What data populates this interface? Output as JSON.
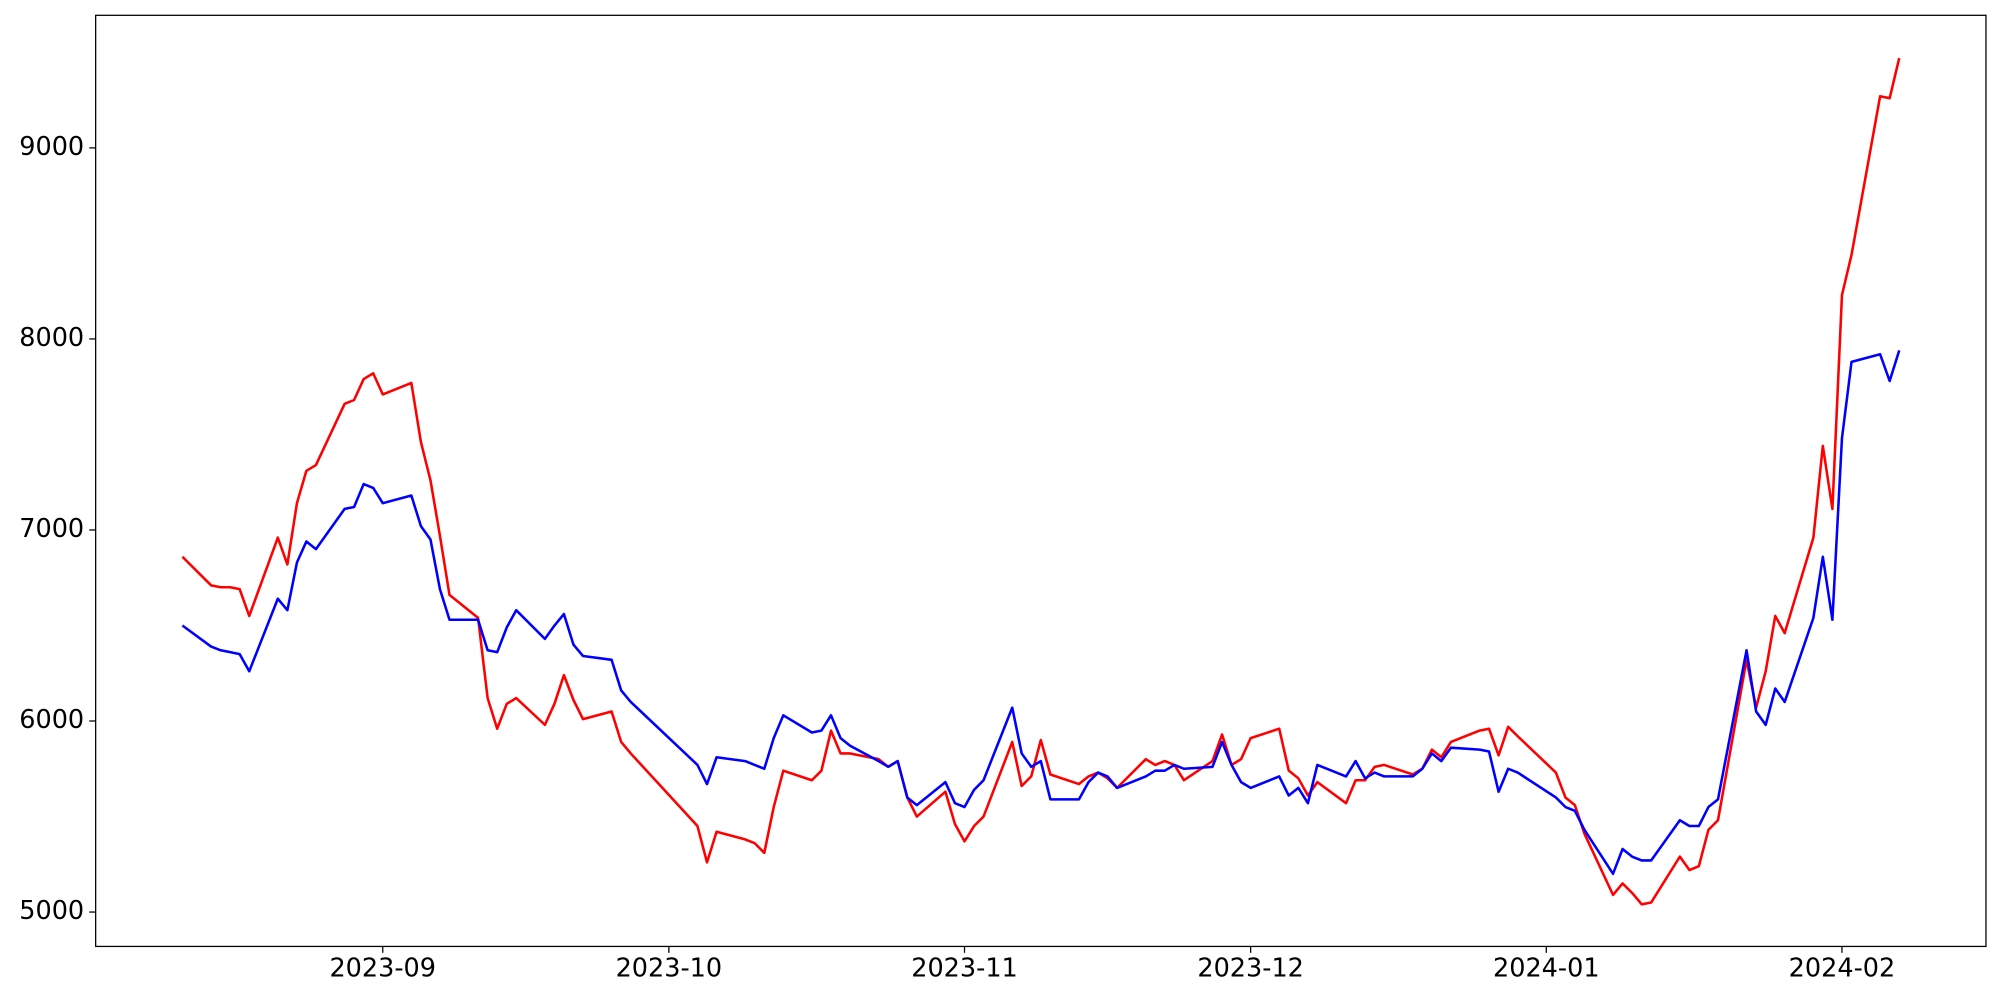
{
  "chart_data": {
    "type": "line",
    "x": [
      19580,
      19583,
      19584,
      19585,
      19586,
      19587,
      19590,
      19591,
      19592,
      19593,
      19594,
      19597,
      19598,
      19599,
      19600,
      19601,
      19604,
      19605,
      19606,
      19607,
      19608,
      19611,
      19612,
      19613,
      19614,
      19615,
      19618,
      19619,
      19620,
      19621,
      19622,
      19625,
      19626,
      19627,
      19634,
      19635,
      19636,
      19639,
      19640,
      19641,
      19642,
      19643,
      19646,
      19647,
      19648,
      19649,
      19650,
      19653,
      19654,
      19655,
      19656,
      19657,
      19660,
      19661,
      19662,
      19663,
      19664,
      19667,
      19668,
      19669,
      19670,
      19671,
      19674,
      19675,
      19676,
      19677,
      19678,
      19681,
      19682,
      19683,
      19684,
      19685,
      19688,
      19689,
      19690,
      19691,
      19692,
      19695,
      19696,
      19697,
      19698,
      19699,
      19702,
      19703,
      19704,
      19705,
      19706,
      19709,
      19710,
      19711,
      19712,
      19713,
      19716,
      19717,
      19718,
      19719,
      19720,
      19724,
      19725,
      19726,
      19727,
      19730,
      19731,
      19732,
      19733,
      19734,
      19737,
      19738,
      19739,
      19740,
      19741,
      19744,
      19745,
      19746,
      19747,
      19748,
      19751,
      19752,
      19753,
      19754,
      19755,
      19758,
      19759,
      19760
    ],
    "series": [
      {
        "color": "#ff0000",
        "values": [
          6860,
          6710,
          6700,
          6700,
          6690,
          6550,
          6960,
          6820,
          7140,
          7310,
          7340,
          7660,
          7680,
          7790,
          7820,
          7710,
          7770,
          7460,
          7260,
          6970,
          6660,
          6540,
          6120,
          5960,
          6090,
          6120,
          5980,
          6090,
          6240,
          6110,
          6010,
          6050,
          5890,
          5830,
          5450,
          5260,
          5420,
          5380,
          5360,
          5310,
          5550,
          5740,
          5690,
          5740,
          5950,
          5830,
          5830,
          5800,
          5760,
          5790,
          5600,
          5500,
          5630,
          5460,
          5370,
          5450,
          5500,
          5890,
          5660,
          5710,
          5900,
          5720,
          5670,
          5710,
          5730,
          5700,
          5650,
          5800,
          5770,
          5790,
          5770,
          5690,
          5790,
          5930,
          5770,
          5800,
          5910,
          5960,
          5740,
          5700,
          5610,
          5680,
          5570,
          5690,
          5690,
          5760,
          5770,
          5720,
          5750,
          5850,
          5810,
          5890,
          5950,
          5960,
          5820,
          5970,
          5920,
          5730,
          5600,
          5560,
          5410,
          5090,
          5150,
          5100,
          5040,
          5050,
          5290,
          5220,
          5240,
          5430,
          5480,
          6320,
          6070,
          6260,
          6550,
          6460,
          6960,
          7440,
          7110,
          8230,
          8440,
          9270,
          9260,
          9470
        ]
      },
      {
        "color": "#0000ff",
        "values": [
          6500,
          6390,
          6370,
          6360,
          6350,
          6260,
          6640,
          6580,
          6830,
          6940,
          6900,
          7110,
          7120,
          7240,
          7220,
          7140,
          7180,
          7020,
          6950,
          6690,
          6530,
          6530,
          6370,
          6360,
          6490,
          6580,
          6430,
          6500,
          6560,
          6400,
          6340,
          6320,
          6160,
          6100,
          5770,
          5670,
          5810,
          5790,
          5770,
          5750,
          5910,
          6030,
          5940,
          5950,
          6030,
          5910,
          5870,
          5790,
          5760,
          5790,
          5600,
          5560,
          5680,
          5570,
          5550,
          5640,
          5690,
          6070,
          5830,
          5760,
          5790,
          5590,
          5590,
          5680,
          5730,
          5710,
          5650,
          5710,
          5740,
          5740,
          5770,
          5750,
          5760,
          5890,
          5770,
          5680,
          5650,
          5710,
          5610,
          5650,
          5570,
          5770,
          5710,
          5790,
          5700,
          5730,
          5710,
          5710,
          5750,
          5830,
          5790,
          5860,
          5850,
          5840,
          5630,
          5750,
          5730,
          5600,
          5550,
          5530,
          5430,
          5200,
          5330,
          5290,
          5270,
          5270,
          5480,
          5450,
          5450,
          5550,
          5590,
          6370,
          6050,
          5980,
          6170,
          6100,
          6540,
          6860,
          6530,
          7480,
          7880,
          7920,
          7780,
          7940
        ]
      }
    ],
    "xlim": [
      19570.9,
      19769.1
    ],
    "xticks": [
      {
        "value": 19601,
        "label": "2023-09"
      },
      {
        "value": 19631,
        "label": "2023-10"
      },
      {
        "value": 19662,
        "label": "2023-11"
      },
      {
        "value": 19692,
        "label": "2023-12"
      },
      {
        "value": 19723,
        "label": "2024-01"
      },
      {
        "value": 19754,
        "label": "2024-02"
      }
    ],
    "ylim": [
      4820,
      9694
    ],
    "yticks": [
      5000,
      6000,
      7000,
      8000,
      9000
    ]
  }
}
